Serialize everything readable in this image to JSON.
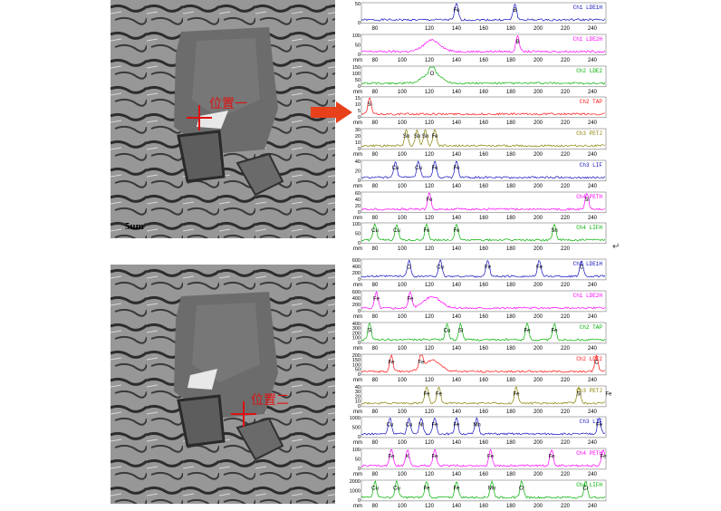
{
  "images": [
    {
      "scale_label": "5um",
      "position_label": "位置一"
    },
    {
      "scale_label": "",
      "position_label": "位置二"
    }
  ],
  "colors": {
    "blue": "#1010c0",
    "magenta": "#ff00ff",
    "green": "#00b000",
    "red": "#ff1010",
    "olive": "#888000",
    "arrow": "#e8401a"
  },
  "top_spectra": [
    {
      "name": "Ch1 LDE1H",
      "color": "blue",
      "peaks": [
        {
          "x": 140,
          "label": "Fe"
        },
        {
          "x": 183,
          "label": "B"
        }
      ],
      "ticks": [
        "80",
        "120",
        "140",
        "160",
        "180",
        "200",
        "220",
        "240"
      ],
      "yticks": [
        "50",
        "0"
      ]
    },
    {
      "name": "Ch1 LDE2H",
      "color": "magenta",
      "peaks": [
        {
          "x": 185,
          "label": "B"
        }
      ],
      "ticks": [
        "mm",
        "80",
        "100",
        "120",
        "140",
        "160",
        "180",
        "200",
        "220",
        "240"
      ],
      "yticks": [
        "100",
        "50",
        "0"
      ]
    },
    {
      "name": "Ch2 LDE2",
      "color": "green",
      "peaks": [
        {
          "x": 122,
          "label": "O"
        }
      ],
      "ticks": [
        "mm",
        "80",
        "100",
        "120",
        "140",
        "160",
        "180",
        "200",
        "220",
        "240"
      ],
      "yticks": [
        "150",
        "100",
        "50",
        "0"
      ]
    },
    {
      "name": "Ch2 TAP",
      "color": "red",
      "peaks": [
        {
          "x": 76,
          "label": "Si"
        }
      ],
      "ticks": [
        "mm",
        "80",
        "100",
        "120",
        "140",
        "160",
        "180",
        "200",
        "220",
        "240"
      ],
      "yticks": [
        "15",
        "10",
        "5",
        "0"
      ]
    },
    {
      "name": "Ch3 PETJ",
      "color": "olive",
      "peaks": [
        {
          "x": 103,
          "label": "Sn"
        },
        {
          "x": 111,
          "label": "Sn"
        },
        {
          "x": 117,
          "label": "Sn"
        },
        {
          "x": 124,
          "label": "Fe"
        }
      ],
      "ticks": [
        "mm",
        "80",
        "100",
        "120",
        "140",
        "160",
        "180",
        "200",
        "220",
        "240"
      ],
      "yticks": [
        "30",
        "20",
        "10",
        "0"
      ]
    },
    {
      "name": "Ch3 LIF",
      "color": "blue",
      "peaks": [
        {
          "x": 95,
          "label": "Cu"
        },
        {
          "x": 112,
          "label": "Cu"
        },
        {
          "x": 124,
          "label": "Fe"
        },
        {
          "x": 140,
          "label": "Fe"
        }
      ],
      "ticks": [
        "mm",
        "80",
        "100",
        "120",
        "140",
        "160",
        "180",
        "200",
        "220",
        "240"
      ],
      "yticks": [
        "40",
        "20",
        "0"
      ]
    },
    {
      "name": "Ch4 PETH",
      "color": "magenta",
      "peaks": [
        {
          "x": 120,
          "label": "Fe"
        },
        {
          "x": 236,
          "label": "Si"
        }
      ],
      "ticks": [
        "mm",
        "80",
        "100",
        "120",
        "140",
        "160",
        "180",
        "200",
        "220",
        "240"
      ],
      "yticks": [
        "60",
        "40",
        "20",
        "0"
      ]
    },
    {
      "name": "Ch4 LIFH",
      "color": "green",
      "peaks": [
        {
          "x": 80,
          "label": "Cu"
        },
        {
          "x": 96,
          "label": "Cu"
        },
        {
          "x": 118,
          "label": "Fe"
        },
        {
          "x": 140,
          "label": "Fe"
        },
        {
          "x": 212,
          "label": "Sn"
        }
      ],
      "ticks": [
        "mm",
        "80",
        "100",
        "120",
        "140",
        "160",
        "180",
        "200",
        "220"
      ],
      "yticks": [
        "100",
        "50",
        "0"
      ]
    }
  ],
  "bottom_spectra": [
    {
      "name": "Ch1 LDE1H",
      "color": "blue",
      "peaks": [
        {
          "x": 105,
          "label": "O"
        },
        {
          "x": 128,
          "label": "Cu"
        },
        {
          "x": 163,
          "label": "Fe"
        },
        {
          "x": 201,
          "label": "Fe"
        },
        {
          "x": 232,
          "label": "C"
        }
      ],
      "ticks": [
        "mm",
        "80",
        "100",
        "120",
        "140",
        "160",
        "180",
        "200",
        "220",
        "240"
      ],
      "yticks": [
        "600",
        "400",
        "200",
        "0"
      ]
    },
    {
      "name": "Ch1 LDE2H",
      "color": "magenta",
      "peaks": [
        {
          "x": 81,
          "label": "Fe"
        },
        {
          "x": 106,
          "label": "Fe"
        }
      ],
      "ticks": [
        "mm",
        "80",
        "100",
        "120",
        "140",
        "160",
        "180",
        "200",
        "220",
        "240"
      ],
      "yticks": [
        "600",
        "400",
        "200",
        "0"
      ]
    },
    {
      "name": "Ch2 TAP",
      "color": "green",
      "peaks": [
        {
          "x": 76,
          "label": "Si"
        },
        {
          "x": 133,
          "label": "Cu"
        },
        {
          "x": 143,
          "label": "Si"
        },
        {
          "x": 192,
          "label": "Fe"
        },
        {
          "x": 212,
          "label": "Fe"
        }
      ],
      "ticks": [
        "mm",
        "80",
        "100",
        "120",
        "140",
        "160",
        "180",
        "200",
        "220",
        "240"
      ],
      "yticks": [
        "400",
        "300",
        "200",
        "100",
        "0"
      ]
    },
    {
      "name": "Ch2 LDE2",
      "color": "red",
      "peaks": [
        {
          "x": 92,
          "label": "Fe"
        },
        {
          "x": 114,
          "label": "Fe"
        },
        {
          "x": 243,
          "label": "C"
        }
      ],
      "ticks": [
        "mm",
        "80",
        "100",
        "120",
        "140",
        "160",
        "180",
        "200",
        "220",
        "240"
      ],
      "yticks": [
        "200",
        "150",
        "100",
        "50",
        "0"
      ]
    },
    {
      "name": "Ch3 PETJ",
      "color": "olive",
      "peaks": [
        {
          "x": 118,
          "label": "Fe"
        },
        {
          "x": 127,
          "label": "Fe"
        },
        {
          "x": 184,
          "label": "Fe"
        },
        {
          "x": 230,
          "label": "Si"
        },
        {
          "x": 252,
          "label": "Fe"
        }
      ],
      "ticks": [
        "mm",
        "80",
        "100",
        "120",
        "140",
        "160",
        "180",
        "200",
        "220",
        "240"
      ],
      "yticks": [
        "40",
        "30",
        "20",
        "10",
        "0"
      ]
    },
    {
      "name": "Ch3 LIF",
      "color": "blue",
      "peaks": [
        {
          "x": 91,
          "label": "Cu"
        },
        {
          "x": 105,
          "label": "Cu"
        },
        {
          "x": 114,
          "label": "Ni"
        },
        {
          "x": 124,
          "label": "Fe"
        },
        {
          "x": 140,
          "label": "Fe"
        },
        {
          "x": 155,
          "label": "Mn"
        },
        {
          "x": 245,
          "label": "Fe"
        }
      ],
      "ticks": [
        "mm",
        "80",
        "100",
        "120",
        "140",
        "160",
        "180",
        "200",
        "220",
        "240"
      ],
      "yticks": [
        "1000",
        "500",
        "0"
      ]
    },
    {
      "name": "Ch4 PETH",
      "color": "magenta",
      "peaks": [
        {
          "x": 92,
          "label": "Fe"
        },
        {
          "x": 104,
          "label": "K"
        },
        {
          "x": 124,
          "label": "Fe"
        },
        {
          "x": 165,
          "label": "Fe"
        },
        {
          "x": 210,
          "label": "Fe"
        },
        {
          "x": 248,
          "label": "Fe"
        }
      ],
      "ticks": [
        "mm",
        "80",
        "100",
        "120",
        "140",
        "160",
        "180",
        "200",
        "220",
        "240"
      ],
      "yticks": [
        "100",
        "50",
        "0"
      ]
    },
    {
      "name": "Ch4 LIFH",
      "color": "green",
      "peaks": [
        {
          "x": 80,
          "label": "Cu"
        },
        {
          "x": 96,
          "label": "Cu"
        },
        {
          "x": 118,
          "label": "Fe"
        },
        {
          "x": 140,
          "label": "Fe"
        },
        {
          "x": 166,
          "label": "Mn"
        },
        {
          "x": 188,
          "label": "Cr"
        },
        {
          "x": 235,
          "label": "Cr"
        }
      ],
      "ticks": [
        "mm",
        "80",
        "100",
        "120",
        "140",
        "160",
        "180",
        "200",
        "220",
        "240"
      ],
      "yticks": [
        "2000",
        "1000",
        "0"
      ]
    }
  ],
  "return_mark": "↵"
}
